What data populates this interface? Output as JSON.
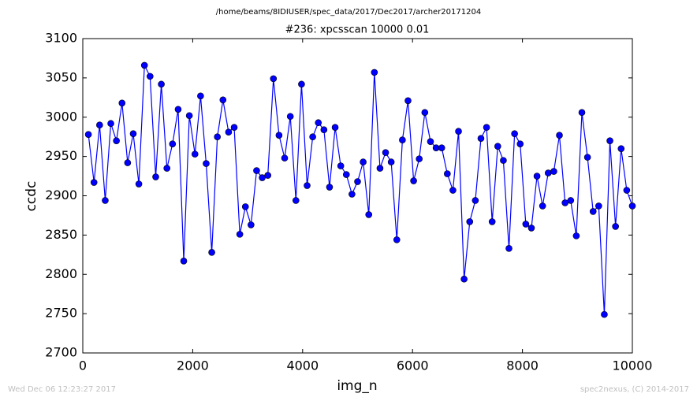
{
  "chart_data": {
    "type": "line",
    "suptitle": "/home/beams/8IDIUSER/spec_data/2017/Dec2017/archer20171204",
    "title": "#236: xpcsscan 10000 0.01",
    "x_label": "img_n",
    "y_label": "ccdc",
    "footer_left": "Wed Dec 06 12:23:27 2017",
    "footer_right": "spec2nexus, (C) 2014-2017",
    "xlim": [
      0,
      10000
    ],
    "xticks": [
      0,
      2000,
      4000,
      6000,
      8000,
      10000
    ],
    "ylim": [
      2700,
      3100
    ],
    "yticks": [
      2700,
      2750,
      2800,
      2850,
      2900,
      2950,
      3000,
      3050,
      3100
    ],
    "x": [
      102,
      204,
      306,
      408,
      510,
      612,
      714,
      816,
      918,
      1020,
      1122,
      1224,
      1327,
      1429,
      1531,
      1633,
      1735,
      1837,
      1939,
      2041,
      2143,
      2245,
      2347,
      2449,
      2551,
      2653,
      2755,
      2857,
      2959,
      3061,
      3163,
      3265,
      3367,
      3469,
      3571,
      3673,
      3776,
      3878,
      3980,
      4082,
      4184,
      4286,
      4388,
      4490,
      4592,
      4694,
      4796,
      4898,
      5000,
      5102,
      5204,
      5306,
      5408,
      5510,
      5612,
      5714,
      5816,
      5918,
      6020,
      6122,
      6224,
      6327,
      6429,
      6531,
      6633,
      6735,
      6837,
      6939,
      7041,
      7143,
      7245,
      7347,
      7449,
      7551,
      7653,
      7755,
      7857,
      7959,
      8061,
      8163,
      8265,
      8367,
      8469,
      8571,
      8673,
      8776,
      8878,
      8980,
      9082,
      9184,
      9286,
      9388,
      9490,
      9592,
      9694,
      9796,
      9898,
      10000
    ],
    "series": [
      {
        "name": "ccdc",
        "color": "#0000ff",
        "values": [
          2978,
          2917,
          2990,
          2894,
          2992,
          2970,
          3018,
          2942,
          2979,
          2915,
          3066,
          3052,
          2924,
          3042,
          2935,
          2966,
          3010,
          2817,
          3002,
          2953,
          3027,
          2941,
          2828,
          2975,
          3022,
          2981,
          2987,
          2851,
          2886,
          2863,
          2932,
          2923,
          2926,
          3049,
          2977,
          2948,
          3001,
          2894,
          3042,
          2913,
          2975,
          2993,
          2984,
          2911,
          2987,
          2938,
          2927,
          2902,
          2918,
          2943,
          2876,
          3057,
          2935,
          2955,
          2943,
          2844,
          2971,
          3021,
          2919,
          2947,
          3006,
          2969,
          2961,
          2961,
          2928,
          2907,
          2982,
          2794,
          2867,
          2894,
          2973,
          2987,
          2867,
          2963,
          2945,
          2833,
          2979,
          2966,
          2864,
          2859,
          2925,
          2887,
          2929,
          2931,
          2977,
          2891,
          2894,
          2849,
          3006,
          2949,
          2880,
          2887,
          2749,
          2970,
          2861,
          2960,
          2907,
          2887
        ]
      }
    ]
  }
}
